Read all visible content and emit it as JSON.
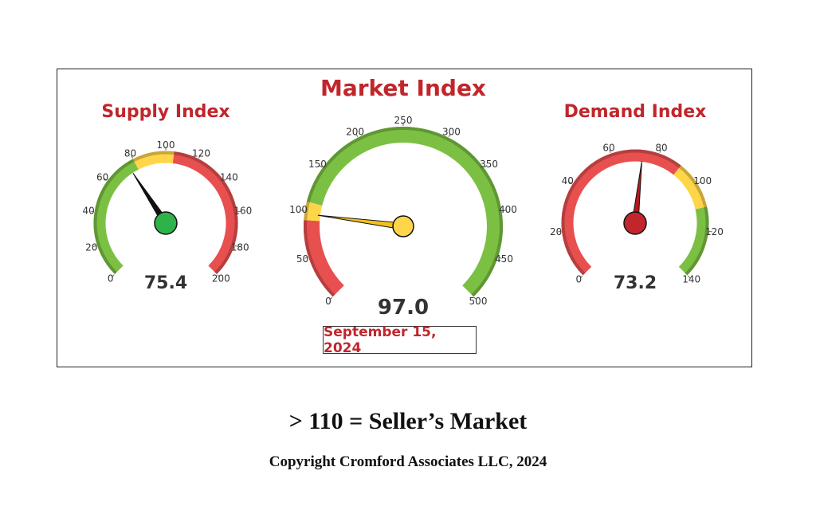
{
  "chart_data": [
    {
      "type": "gauge",
      "title": "Supply Index",
      "value": 75.4,
      "display_value": "75.4",
      "range": [
        0,
        200
      ],
      "ticks": [
        0,
        20,
        40,
        60,
        80,
        100,
        120,
        140,
        160,
        180,
        200
      ],
      "bands": [
        {
          "from": 0,
          "to": 80,
          "color": "#7bc043"
        },
        {
          "from": 80,
          "to": 105,
          "color": "#ffd54a"
        },
        {
          "from": 105,
          "to": 200,
          "color": "#e84f4f"
        }
      ],
      "needle_color": "#111111",
      "hub_color": "#2db34a"
    },
    {
      "type": "gauge",
      "title": "Market Index",
      "value": 97.0,
      "display_value": "97.0",
      "range": [
        0,
        500
      ],
      "ticks": [
        0,
        50,
        100,
        150,
        200,
        250,
        300,
        350,
        400,
        450,
        500
      ],
      "bands": [
        {
          "from": 0,
          "to": 90,
          "color": "#e84f4f"
        },
        {
          "from": 90,
          "to": 110,
          "color": "#ffd54a"
        },
        {
          "from": 110,
          "to": 500,
          "color": "#7bc043"
        }
      ],
      "needle_color": "#f2c21b",
      "hub_color": "#ffd54a"
    },
    {
      "type": "gauge",
      "title": "Demand Index",
      "value": 73.2,
      "display_value": "73.2",
      "range": [
        0,
        140
      ],
      "ticks": [
        0,
        20,
        40,
        60,
        80,
        100,
        120,
        140
      ],
      "bands": [
        {
          "from": 0,
          "to": 90,
          "color": "#e84f4f"
        },
        {
          "from": 90,
          "to": 110,
          "color": "#ffd54a"
        },
        {
          "from": 110,
          "to": 140,
          "color": "#7bc043"
        }
      ],
      "needle_color": "#b3191e",
      "hub_color": "#c0262b"
    }
  ],
  "date": "September 15, 2024",
  "caption": "> 110 = Seller’s Market",
  "copyright": "Copyright Cromford Associates LLC, 2024"
}
